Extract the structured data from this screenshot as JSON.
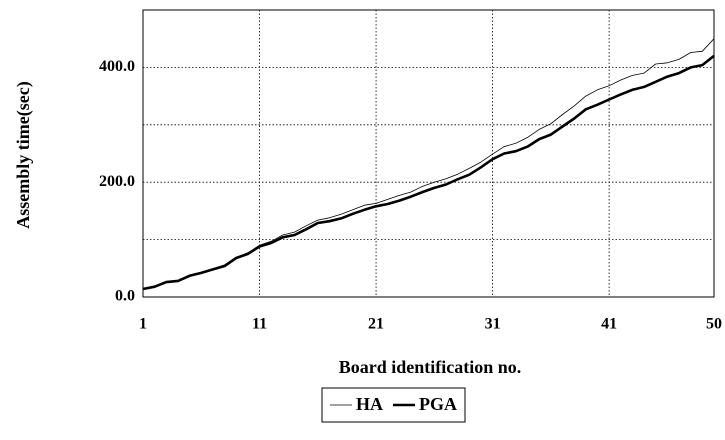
{
  "chart_data": {
    "type": "line",
    "x_label": "Board identification no.",
    "y_label": "Assembly time(sec)",
    "x": [
      1,
      2,
      3,
      4,
      5,
      6,
      7,
      8,
      9,
      10,
      11,
      12,
      13,
      14,
      15,
      16,
      17,
      18,
      19,
      20,
      21,
      22,
      23,
      24,
      25,
      26,
      27,
      28,
      29,
      30,
      31,
      32,
      33,
      34,
      35,
      36,
      37,
      38,
      39,
      40,
      41,
      42,
      43,
      44,
      45,
      46,
      47,
      48,
      49,
      50
    ],
    "series": [
      {
        "name": "HA",
        "color": "#000000",
        "width": 0.8,
        "values": [
          14,
          19,
          27,
          29,
          38,
          43,
          49,
          56,
          69,
          77,
          90,
          97,
          108,
          113,
          124,
          134,
          138,
          144,
          152,
          160,
          163,
          170,
          177,
          183,
          193,
          200,
          206,
          214,
          224,
          235,
          249,
          262,
          268,
          278,
          292,
          302,
          318,
          333,
          350,
          361,
          368,
          378,
          386,
          390,
          406,
          408,
          414,
          426,
          428,
          450
        ]
      },
      {
        "name": "PGA",
        "color": "#000000",
        "width": 2.6,
        "values": [
          14,
          18,
          26,
          28,
          37,
          42,
          48,
          54,
          68,
          75,
          88,
          94,
          104,
          108,
          118,
          129,
          132,
          137,
          145,
          152,
          158,
          162,
          168,
          175,
          183,
          190,
          196,
          205,
          213,
          226,
          240,
          250,
          254,
          262,
          275,
          283,
          297,
          311,
          327,
          335,
          344,
          353,
          361,
          366,
          375,
          384,
          390,
          400,
          404,
          420
        ]
      }
    ],
    "xlim": [
      1,
      50
    ],
    "xticks": [
      1,
      11,
      21,
      31,
      41,
      50
    ],
    "ylim": [
      0,
      500
    ],
    "yticks": [
      {
        "value": 0,
        "label": "0.0"
      },
      {
        "value": 200,
        "label": "200.0"
      },
      {
        "value": 400,
        "label": "400.0"
      }
    ],
    "ygrid": [
      100,
      300
    ],
    "grid": true,
    "legend": "bottom"
  }
}
